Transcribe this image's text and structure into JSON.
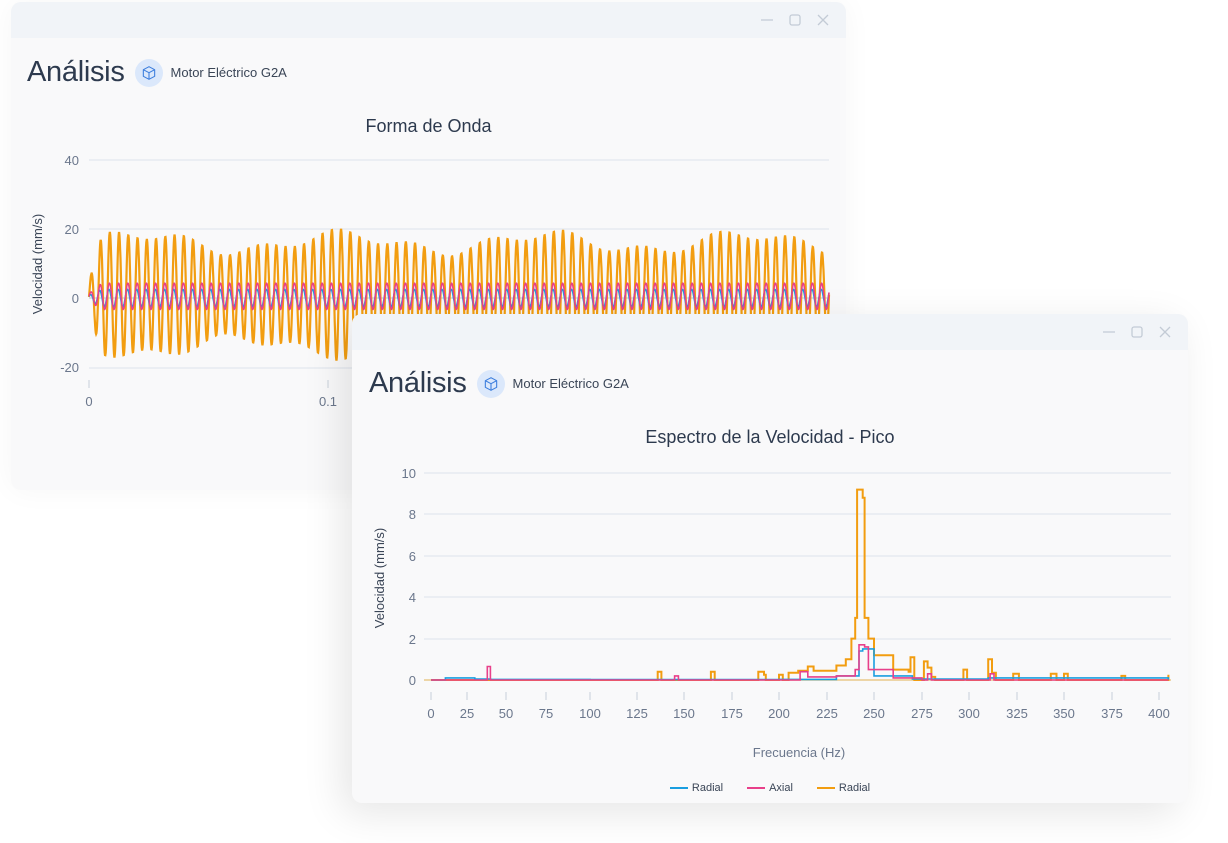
{
  "windows": [
    {
      "id": "waveform",
      "header": {
        "title": "Análisis",
        "asset_icon": "cube-icon",
        "asset_name": "Motor Eléctrico G2A"
      },
      "controls": [
        "minimize-icon",
        "maximize-icon",
        "close-icon"
      ]
    },
    {
      "id": "spectrum",
      "header": {
        "title": "Análisis",
        "asset_icon": "cube-icon",
        "asset_name": "Motor Eléctrico G2A"
      },
      "controls": [
        "minimize-icon",
        "maximize-icon",
        "close-icon"
      ]
    }
  ],
  "colors": {
    "radial_blue": "#1a9ee0",
    "axial_pink": "#e8408a",
    "radial_orange": "#f29d10",
    "grid": "#d8dee8",
    "axis_text": "#6b778c"
  },
  "chart_data": [
    {
      "type": "line",
      "title": "Forma de Onda",
      "xlabel": "",
      "ylabel": "Velocidad (mm/s)",
      "ylim": [
        -20,
        40
      ],
      "yticks": [
        "40",
        "20",
        "0",
        "-20"
      ],
      "xticks_visible": [
        "0",
        "0.1"
      ],
      "grid": true,
      "series": [
        {
          "name": "Radial",
          "color": "#1a9ee0",
          "description": "oscillation approx ±3 mm/s"
        },
        {
          "name": "Axial",
          "color": "#e8408a",
          "description": "oscillation approx ±4 mm/s"
        },
        {
          "name": "Radial",
          "color": "#f29d10",
          "description": "oscillation approx -14 to +18 mm/s, ~80 cycles"
        }
      ]
    },
    {
      "type": "line",
      "title": "Espectro de la Velocidad - Pico",
      "xlabel": "Frecuencia (Hz)",
      "ylabel": "Velocidad (mm/s)",
      "ylim": [
        0,
        10
      ],
      "yticks": [
        "10",
        "8",
        "6",
        "4",
        "2",
        "0"
      ],
      "xticks": [
        "0",
        "25",
        "50",
        "75",
        "100",
        "125",
        "150",
        "175",
        "200",
        "225",
        "250",
        "275",
        "300",
        "325",
        "350",
        "375",
        "400"
      ],
      "grid": true,
      "legend_position": "bottom",
      "legend": [
        "Radial",
        "Axial",
        "Radial"
      ],
      "series": [
        {
          "name": "Radial",
          "color": "#1a9ee0",
          "points": [
            [
              0,
              0
            ],
            [
              10,
              0.1
            ],
            [
              20,
              0.1
            ],
            [
              30,
              0.05
            ],
            [
              40,
              0.03
            ],
            [
              100,
              0.02
            ],
            [
              200,
              0.03
            ],
            [
              230,
              0.2
            ],
            [
              242,
              1.4
            ],
            [
              244,
              1.5
            ],
            [
              250,
              0.2
            ],
            [
              270,
              0.05
            ],
            [
              310,
              0.1
            ],
            [
              405,
              0.02
            ]
          ]
        },
        {
          "name": "Axial",
          "color": "#e8408a",
          "points": [
            [
              0,
              0
            ],
            [
              38,
              0
            ],
            [
              38,
              0.65
            ],
            [
              40,
              0.65
            ],
            [
              40,
              0
            ],
            [
              145,
              0
            ],
            [
              145,
              0.2
            ],
            [
              147,
              0
            ],
            [
              210,
              0
            ],
            [
              211,
              0.4
            ],
            [
              215,
              0.15
            ],
            [
              230,
              0.2
            ],
            [
              240,
              0.5
            ],
            [
              242,
              1.7
            ],
            [
              245,
              1.6
            ],
            [
              247,
              0.5
            ],
            [
              260,
              0.1
            ],
            [
              275,
              0
            ],
            [
              278,
              0.3
            ],
            [
              280,
              0
            ],
            [
              310,
              0
            ],
            [
              311,
              0.3
            ],
            [
              313,
              0
            ],
            [
              405,
              0
            ]
          ]
        },
        {
          "name": "Radial",
          "color": "#f29d10",
          "points": [
            [
              0,
              0
            ],
            [
              135,
              0
            ],
            [
              136,
              0.4
            ],
            [
              138,
              0
            ],
            [
              163,
              0
            ],
            [
              164,
              0.4
            ],
            [
              166,
              0
            ],
            [
              188,
              0
            ],
            [
              189,
              0.4
            ],
            [
              192,
              0.25
            ],
            [
              193,
              0
            ],
            [
              199,
              0
            ],
            [
              200,
              0.25
            ],
            [
              202,
              0
            ],
            [
              204,
              0
            ],
            [
              205,
              0.35
            ],
            [
              210,
              0.45
            ],
            [
              215,
              0.65
            ],
            [
              218,
              0.45
            ],
            [
              230,
              0.7
            ],
            [
              235,
              1.0
            ],
            [
              238,
              2.0
            ],
            [
              240,
              3.0
            ],
            [
              241,
              9.2
            ],
            [
              243,
              9.2
            ],
            [
              244,
              8.8
            ],
            [
              245,
              3.0
            ],
            [
              247,
              2.0
            ],
            [
              250,
              1.2
            ],
            [
              260,
              0.5
            ],
            [
              268,
              0.4
            ],
            [
              269,
              1.1
            ],
            [
              271,
              0
            ],
            [
              275,
              0
            ],
            [
              276,
              0.9
            ],
            [
              278,
              0.6
            ],
            [
              280,
              0.15
            ],
            [
              282,
              0
            ],
            [
              296,
              0
            ],
            [
              297,
              0.5
            ],
            [
              299,
              0
            ],
            [
              309,
              0
            ],
            [
              310,
              1.0
            ],
            [
              312,
              0.35
            ],
            [
              314,
              0
            ],
            [
              322,
              0
            ],
            [
              323,
              0.3
            ],
            [
              326,
              0
            ],
            [
              342,
              0
            ],
            [
              343,
              0.3
            ],
            [
              346,
              0
            ],
            [
              349,
              0
            ],
            [
              350,
              0.3
            ],
            [
              352,
              0
            ],
            [
              379,
              0
            ],
            [
              380,
              0.2
            ],
            [
              382,
              0
            ],
            [
              404,
              0
            ],
            [
              405,
              0.25
            ]
          ]
        }
      ]
    }
  ]
}
